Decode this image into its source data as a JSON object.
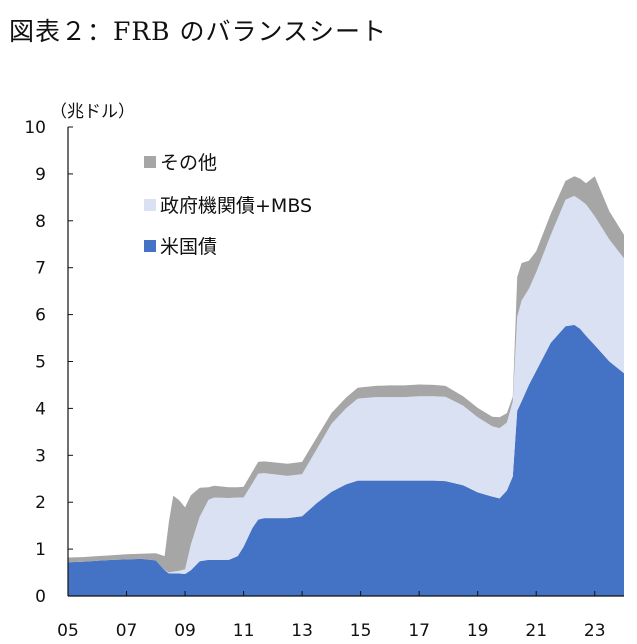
{
  "figure_title": "図表２：FRB のバランスシート",
  "chart_data": {
    "type": "area",
    "stacked": true,
    "ylabel": "（兆ドル）",
    "ylim": [
      0,
      10
    ],
    "y_ticks": [
      "0",
      "1",
      "2",
      "3",
      "4",
      "5",
      "6",
      "7",
      "8",
      "9",
      "10"
    ],
    "x_ticks": [
      "05",
      "07",
      "09",
      "11",
      "13",
      "15",
      "17",
      "19",
      "21",
      "23"
    ],
    "x_tick_years": [
      2005,
      2007,
      2009,
      2011,
      2013,
      2015,
      2017,
      2019,
      2021,
      2023
    ],
    "xlim": [
      2005.0,
      2024.0
    ],
    "legend_position": "top-left",
    "colors": {
      "treasury": "#4472C4",
      "agency_mbs": "#D9E1F2",
      "other": "#A6A6A6"
    },
    "series": [
      {
        "name": "米国債",
        "key": "treasury",
        "x": [
          2005.0,
          2005.5,
          2006.0,
          2006.5,
          2007.0,
          2007.5,
          2008.0,
          2008.3,
          2008.45,
          2008.6,
          2008.8,
          2009.0,
          2009.2,
          2009.5,
          2009.8,
          2010.0,
          2010.5,
          2010.8,
          2011.0,
          2011.3,
          2011.5,
          2011.7,
          2012.0,
          2012.5,
          2013.0,
          2013.5,
          2014.0,
          2014.5,
          2014.9,
          2015.5,
          2016.0,
          2016.5,
          2017.0,
          2017.5,
          2017.9,
          2018.5,
          2019.0,
          2019.5,
          2019.75,
          2020.0,
          2020.2,
          2020.35,
          2020.5,
          2020.75,
          2021.0,
          2021.5,
          2022.0,
          2022.3,
          2022.5,
          2022.7,
          2023.0,
          2023.5,
          2024.0
        ],
        "values": [
          0.72,
          0.73,
          0.75,
          0.77,
          0.78,
          0.79,
          0.76,
          0.55,
          0.48,
          0.48,
          0.48,
          0.47,
          0.55,
          0.74,
          0.77,
          0.77,
          0.77,
          0.85,
          1.05,
          1.45,
          1.63,
          1.66,
          1.66,
          1.66,
          1.7,
          1.98,
          2.22,
          2.38,
          2.46,
          2.46,
          2.46,
          2.46,
          2.46,
          2.46,
          2.45,
          2.36,
          2.21,
          2.12,
          2.08,
          2.25,
          2.55,
          3.95,
          4.15,
          4.5,
          4.8,
          5.4,
          5.75,
          5.78,
          5.7,
          5.55,
          5.35,
          5.0,
          4.75
        ]
      },
      {
        "name": "政府機関債+MBS",
        "key": "agency_mbs",
        "x": [
          2005.0,
          2005.5,
          2006.0,
          2006.5,
          2007.0,
          2007.5,
          2008.0,
          2008.3,
          2008.45,
          2008.6,
          2008.8,
          2009.0,
          2009.2,
          2009.5,
          2009.8,
          2010.0,
          2010.5,
          2010.8,
          2011.0,
          2011.3,
          2011.5,
          2011.7,
          2012.0,
          2012.5,
          2013.0,
          2013.5,
          2014.0,
          2014.5,
          2014.9,
          2015.5,
          2016.0,
          2016.5,
          2017.0,
          2017.5,
          2017.9,
          2018.5,
          2019.0,
          2019.5,
          2019.75,
          2020.0,
          2020.2,
          2020.35,
          2020.5,
          2020.75,
          2021.0,
          2021.5,
          2022.0,
          2022.3,
          2022.5,
          2022.7,
          2023.0,
          2023.5,
          2024.0
        ],
        "values": [
          0.0,
          0.0,
          0.0,
          0.0,
          0.0,
          0.0,
          0.0,
          0.0,
          0.02,
          0.04,
          0.06,
          0.1,
          0.55,
          0.95,
          1.28,
          1.33,
          1.32,
          1.25,
          1.05,
          0.95,
          0.98,
          0.96,
          0.94,
          0.9,
          0.9,
          1.15,
          1.45,
          1.62,
          1.75,
          1.78,
          1.78,
          1.78,
          1.8,
          1.8,
          1.8,
          1.7,
          1.6,
          1.5,
          1.5,
          1.45,
          1.6,
          2.0,
          2.15,
          2.05,
          2.1,
          2.3,
          2.7,
          2.75,
          2.75,
          2.8,
          2.75,
          2.6,
          2.45
        ]
      },
      {
        "name": "その他",
        "key": "other",
        "x": [
          2005.0,
          2005.5,
          2006.0,
          2006.5,
          2007.0,
          2007.5,
          2008.0,
          2008.3,
          2008.45,
          2008.6,
          2008.8,
          2009.0,
          2009.2,
          2009.5,
          2009.8,
          2010.0,
          2010.5,
          2010.8,
          2011.0,
          2011.3,
          2011.5,
          2011.7,
          2012.0,
          2012.5,
          2013.0,
          2013.5,
          2014.0,
          2014.5,
          2014.9,
          2015.5,
          2016.0,
          2016.5,
          2017.0,
          2017.5,
          2017.9,
          2018.5,
          2019.0,
          2019.5,
          2019.75,
          2020.0,
          2020.2,
          2020.35,
          2020.5,
          2020.75,
          2021.0,
          2021.5,
          2022.0,
          2022.3,
          2022.5,
          2022.7,
          2023.0,
          2023.5,
          2024.0
        ],
        "values": [
          0.1,
          0.1,
          0.1,
          0.1,
          0.11,
          0.11,
          0.15,
          0.3,
          1.1,
          1.62,
          1.5,
          1.32,
          1.05,
          0.62,
          0.27,
          0.25,
          0.23,
          0.22,
          0.23,
          0.25,
          0.25,
          0.25,
          0.25,
          0.26,
          0.26,
          0.25,
          0.23,
          0.23,
          0.23,
          0.24,
          0.25,
          0.25,
          0.25,
          0.24,
          0.23,
          0.2,
          0.2,
          0.2,
          0.23,
          0.2,
          0.1,
          0.85,
          0.8,
          0.6,
          0.45,
          0.45,
          0.4,
          0.42,
          0.45,
          0.45,
          0.85,
          0.6,
          0.5
        ]
      }
    ]
  }
}
